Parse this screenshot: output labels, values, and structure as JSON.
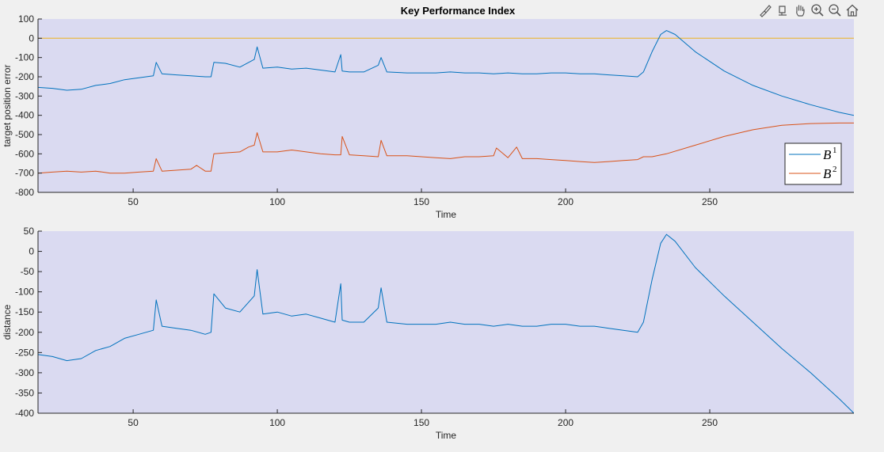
{
  "toolbar": {
    "buttons": [
      {
        "name": "brush-icon"
      },
      {
        "name": "data-tips-icon"
      },
      {
        "name": "pan-hand-icon"
      },
      {
        "name": "zoom-in-icon"
      },
      {
        "name": "zoom-out-icon"
      },
      {
        "name": "home-icon"
      }
    ]
  },
  "colors": {
    "axes_bg": "#dadaf1",
    "b1": "#0072bd",
    "b2": "#d95319",
    "zero_line": "#edb120",
    "figure_bg": "#f0f0f0"
  },
  "chart_data": [
    {
      "type": "line",
      "title": "Key Performance Index",
      "xlabel": "Time",
      "ylabel": "target position error",
      "xlim": [
        17,
        300
      ],
      "ylim": [
        -800,
        100
      ],
      "xticks": [
        50,
        100,
        150,
        200,
        250
      ],
      "xtick_labels": [
        "50",
        "100",
        "150",
        "200",
        "250"
      ],
      "yticks": [
        100,
        0,
        -100,
        -200,
        -300,
        -400,
        -500,
        -600,
        -700,
        -800
      ],
      "ytick_labels": [
        "100",
        "0",
        "-100",
        "-200",
        "-300",
        "-400",
        "-500",
        "-600",
        "-700",
        "-800"
      ],
      "grid": false,
      "legend": {
        "placement": "bottom-right",
        "entries": [
          {
            "base": "B",
            "sup": "1"
          },
          {
            "base": "B",
            "sup": "2"
          }
        ]
      },
      "series": [
        {
          "name": "B1",
          "color": "#0072bd",
          "x": [
            17,
            22,
            27,
            32,
            37,
            42,
            47,
            52,
            57,
            58,
            60,
            65,
            70,
            75,
            77,
            78,
            82,
            87,
            92,
            93,
            95,
            100,
            105,
            110,
            115,
            120,
            122,
            122.5,
            125,
            130,
            135,
            136,
            138,
            145,
            150,
            155,
            160,
            165,
            170,
            175,
            180,
            185,
            190,
            195,
            200,
            205,
            210,
            215,
            220,
            225,
            227,
            230,
            233,
            235,
            238,
            245,
            255,
            265,
            275,
            285,
            295,
            300
          ],
          "y": [
            -255,
            -260,
            -270,
            -265,
            -245,
            -235,
            -215,
            -205,
            -195,
            -125,
            -185,
            -190,
            -195,
            -200,
            -200,
            -125,
            -130,
            -150,
            -110,
            -45,
            -155,
            -150,
            -160,
            -155,
            -165,
            -175,
            -85,
            -170,
            -175,
            -175,
            -140,
            -100,
            -175,
            -180,
            -180,
            -180,
            -175,
            -180,
            -180,
            -185,
            -180,
            -185,
            -185,
            -180,
            -180,
            -185,
            -185,
            -190,
            -195,
            -200,
            -175,
            -70,
            20,
            40,
            20,
            -70,
            -170,
            -245,
            -300,
            -345,
            -385,
            -400
          ]
        },
        {
          "name": "B2",
          "color": "#d95319",
          "x": [
            17,
            22,
            27,
            32,
            37,
            42,
            47,
            52,
            57,
            58,
            60,
            65,
            70,
            72,
            75,
            77,
            78,
            82,
            87,
            90,
            92,
            93,
            95,
            100,
            105,
            110,
            115,
            120,
            122,
            122.5,
            125,
            130,
            135,
            136,
            138,
            145,
            150,
            155,
            160,
            165,
            170,
            175,
            176,
            180,
            183,
            185,
            190,
            195,
            200,
            205,
            210,
            215,
            220,
            225,
            227,
            230,
            235,
            245,
            255,
            265,
            275,
            285,
            295,
            300
          ],
          "y": [
            -700,
            -695,
            -690,
            -695,
            -690,
            -700,
            -700,
            -695,
            -690,
            -625,
            -690,
            -685,
            -680,
            -660,
            -690,
            -690,
            -600,
            -595,
            -590,
            -565,
            -555,
            -490,
            -590,
            -590,
            -580,
            -590,
            -600,
            -605,
            -605,
            -510,
            -605,
            -610,
            -615,
            -530,
            -610,
            -610,
            -615,
            -620,
            -625,
            -615,
            -615,
            -610,
            -570,
            -620,
            -565,
            -625,
            -625,
            -630,
            -635,
            -640,
            -645,
            -640,
            -635,
            -630,
            -615,
            -615,
            -600,
            -555,
            -510,
            -475,
            -452,
            -443,
            -440,
            -440
          ]
        },
        {
          "name": "",
          "color": "#edb120",
          "x": [
            17,
            300
          ],
          "y": [
            0,
            0
          ]
        }
      ]
    },
    {
      "type": "line",
      "title": "",
      "xlabel": "Time",
      "ylabel": "distance",
      "xlim": [
        17,
        300
      ],
      "ylim": [
        -400,
        50
      ],
      "xticks": [
        50,
        100,
        150,
        200,
        250
      ],
      "xtick_labels": [
        "50",
        "100",
        "150",
        "200",
        "250"
      ],
      "yticks": [
        50,
        0,
        -50,
        -100,
        -150,
        -200,
        -250,
        -300,
        -350,
        -400
      ],
      "ytick_labels": [
        "50",
        "0",
        "-50",
        "-100",
        "-150",
        "-200",
        "-250",
        "-300",
        "-350",
        "-400"
      ],
      "grid": false,
      "series": [
        {
          "name": "distance",
          "color": "#0072bd",
          "x": [
            17,
            22,
            27,
            32,
            37,
            42,
            47,
            52,
            57,
            58,
            60,
            65,
            70,
            75,
            77,
            78,
            82,
            87,
            92,
            93,
            95,
            100,
            105,
            110,
            115,
            120,
            122,
            122.5,
            125,
            130,
            135,
            136,
            138,
            145,
            150,
            155,
            160,
            165,
            170,
            175,
            180,
            185,
            190,
            195,
            200,
            205,
            210,
            215,
            220,
            225,
            227,
            230,
            233,
            235,
            238,
            245,
            255,
            265,
            275,
            285,
            295,
            300
          ],
          "y": [
            -255,
            -260,
            -270,
            -265,
            -245,
            -235,
            -215,
            -205,
            -195,
            -120,
            -185,
            -190,
            -195,
            -205,
            -200,
            -105,
            -140,
            -150,
            -110,
            -45,
            -155,
            -150,
            -160,
            -155,
            -165,
            -175,
            -80,
            -170,
            -175,
            -175,
            -140,
            -90,
            -175,
            -180,
            -180,
            -180,
            -175,
            -180,
            -180,
            -185,
            -180,
            -185,
            -185,
            -180,
            -180,
            -185,
            -185,
            -190,
            -195,
            -200,
            -175,
            -70,
            20,
            42,
            25,
            -40,
            -110,
            -175,
            -240,
            -300,
            -365,
            -400
          ]
        }
      ]
    }
  ]
}
